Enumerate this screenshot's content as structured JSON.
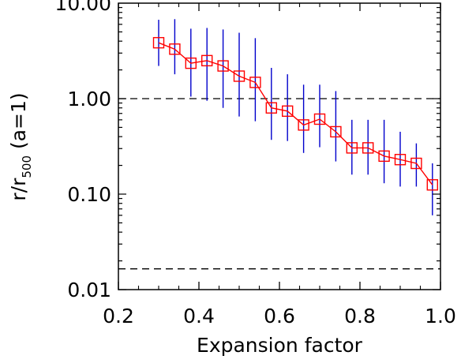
{
  "chart_data": {
    "type": "line",
    "title": "",
    "xlabel": "Expansion factor",
    "ylabel": {
      "main": "r/r",
      "subscript": "500",
      "suffix": " (a=1)"
    },
    "xlim": [
      0.2,
      1.0
    ],
    "ylim": [
      0.01,
      10.0
    ],
    "yscale": "log",
    "x_ticks": [
      0.2,
      0.4,
      0.6,
      0.8,
      1.0
    ],
    "x_tick_labels": [
      "0.2",
      "0.4",
      "0.6",
      "0.8",
      "1.0"
    ],
    "y_ticks": [
      0.01,
      0.1,
      1.0,
      10.0
    ],
    "y_tick_labels": [
      "0.01",
      "0.10",
      "1.00",
      "10.00"
    ],
    "reference_lines": [
      1.0,
      0.0165
    ],
    "series": [
      {
        "x": [
          0.3,
          0.34,
          0.38,
          0.42,
          0.46,
          0.5,
          0.54,
          0.58,
          0.62,
          0.66,
          0.7,
          0.74,
          0.78,
          0.82,
          0.86,
          0.9,
          0.94,
          0.98
        ],
        "y": [
          3.85,
          3.3,
          2.35,
          2.5,
          2.2,
          1.72,
          1.48,
          0.8,
          0.74,
          0.53,
          0.61,
          0.45,
          0.305,
          0.305,
          0.25,
          0.23,
          0.21,
          0.125
        ],
        "err_low": [
          2.2,
          1.8,
          1.05,
          0.95,
          0.8,
          0.65,
          0.58,
          0.37,
          0.36,
          0.27,
          0.31,
          0.22,
          0.16,
          0.16,
          0.13,
          0.12,
          0.12,
          0.06
        ],
        "err_high": [
          6.7,
          6.8,
          5.4,
          5.5,
          5.3,
          4.9,
          4.3,
          2.1,
          1.8,
          1.4,
          1.4,
          1.2,
          0.6,
          0.6,
          0.6,
          0.45,
          0.34,
          0.21
        ],
        "line_color": "#ff0000",
        "marker": "square",
        "error_color": "#0000cc"
      }
    ],
    "colors": {
      "axis": "#000000",
      "reference": "#000000"
    }
  }
}
